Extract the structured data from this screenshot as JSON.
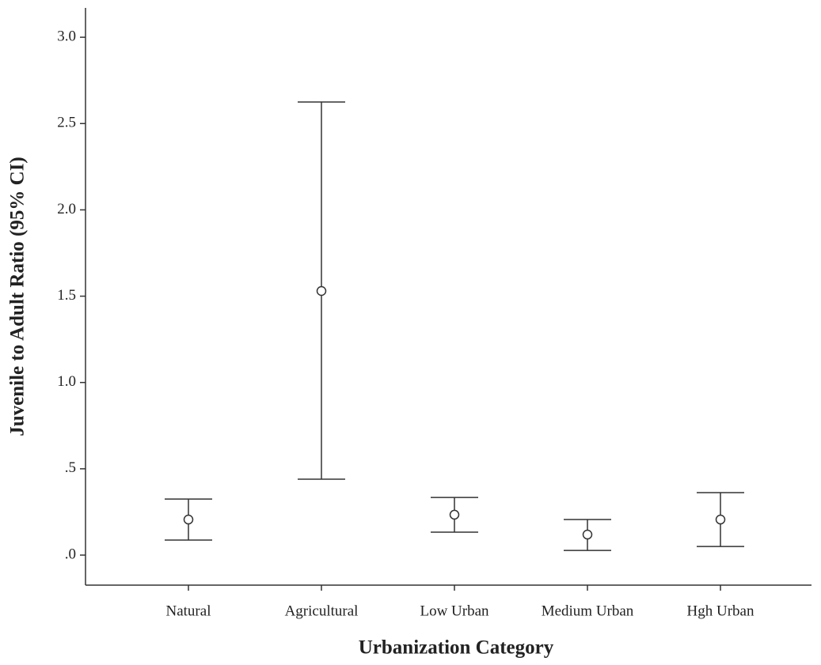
{
  "chart_data": {
    "type": "errorbar",
    "x_label": "Urbanization Category",
    "y_label": "Juvenile to Adult Ratio (95% CI)",
    "categories": [
      "Natural",
      "Agricultural",
      "Low Urban",
      "Medium Urban",
      "Hgh Urban"
    ],
    "values": [
      0.206,
      1.53,
      0.234,
      0.119,
      0.206
    ],
    "lower": [
      0.087,
      0.44,
      0.133,
      0.027,
      0.05
    ],
    "upper": [
      0.325,
      2.625,
      0.334,
      0.206,
      0.362
    ],
    "color": "#333333",
    "ylim": [
      -0.174,
      3.17
    ],
    "yticks": [
      {
        "value": 0,
        "label": ".0"
      },
      {
        "value": 0.5,
        "label": ".5"
      },
      {
        "value": 1.0,
        "label": "1.0"
      },
      {
        "value": 1.5,
        "label": "1.5"
      },
      {
        "value": 2.0,
        "label": "2.0"
      },
      {
        "value": 2.5,
        "label": "2.5"
      },
      {
        "value": 3.0,
        "label": "3.0"
      }
    ]
  }
}
